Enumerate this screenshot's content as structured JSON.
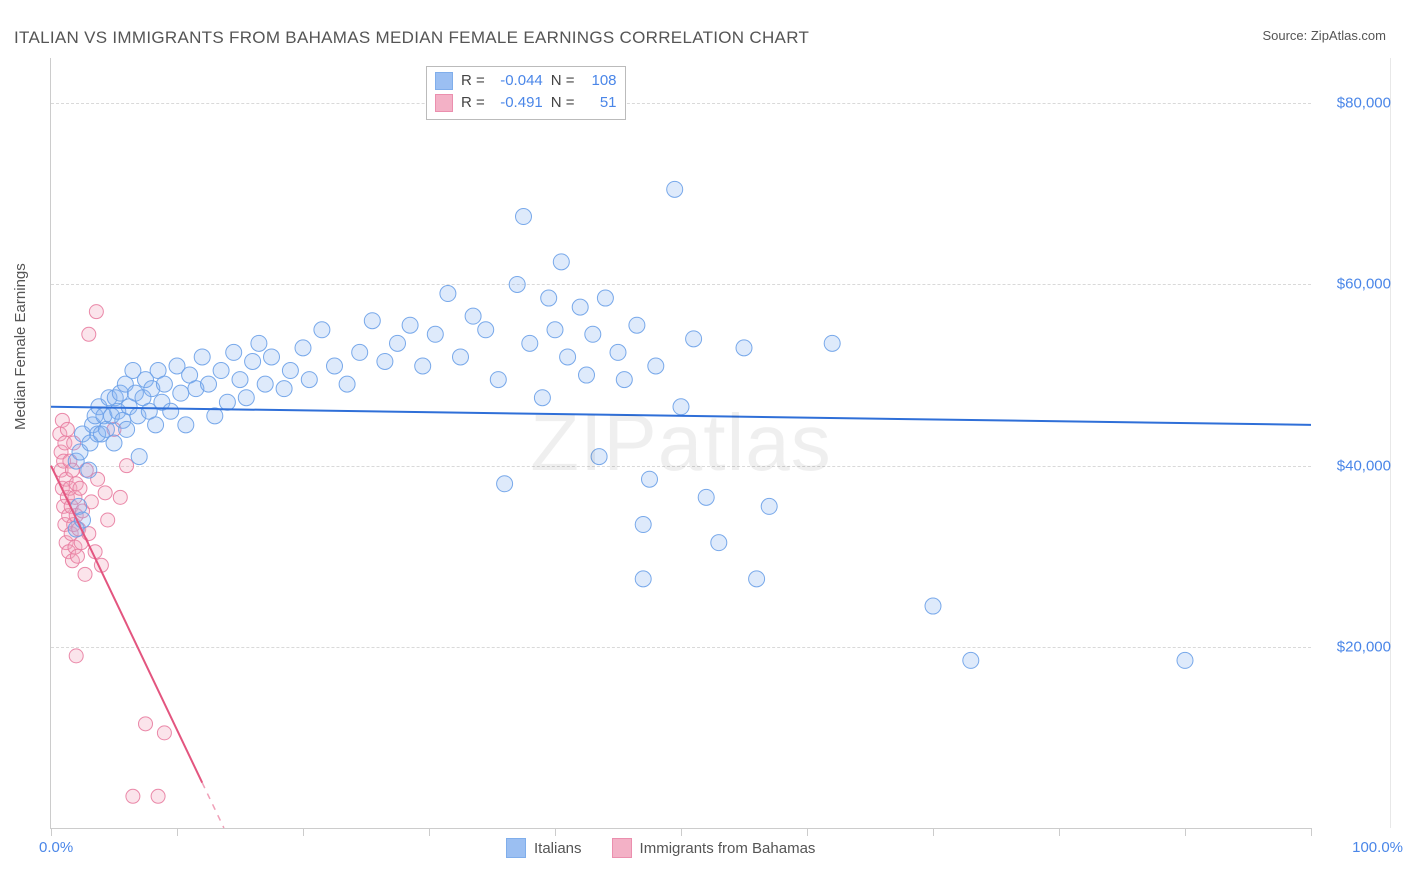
{
  "title": "ITALIAN VS IMMIGRANTS FROM BAHAMAS MEDIAN FEMALE EARNINGS CORRELATION CHART",
  "source_prefix": "Source: ",
  "source_name": "ZipAtlas.com",
  "watermark": "ZIPatlas",
  "ylabel": "Median Female Earnings",
  "chart": {
    "type": "scatter",
    "xlim": [
      0,
      100
    ],
    "ylim": [
      0,
      85000
    ],
    "x_ticks": [
      0,
      10,
      20,
      30,
      40,
      50,
      60,
      70,
      80,
      90,
      100
    ],
    "x_axis_label_left": "0.0%",
    "x_axis_label_right": "100.0%",
    "y_gridlines": [
      20000,
      40000,
      60000,
      80000
    ],
    "y_tick_labels": [
      "$20,000",
      "$40,000",
      "$60,000",
      "$80,000"
    ],
    "grid_color": "#d9d9d9",
    "axis_color": "#cccccc",
    "text_color": "#555555",
    "label_fontsize": 15,
    "title_fontsize": 17,
    "tick_label_color": "#4a86e8",
    "background_color": "#ffffff",
    "marker_radius_a": 8,
    "marker_radius_b": 7,
    "series": {
      "a": {
        "label": "Italians",
        "color": "#6aa0e8",
        "fill": "#8ab4f0",
        "R": "-0.044",
        "N": "108",
        "fit": {
          "x0": 0,
          "y0": 46500,
          "x1": 100,
          "y1": 44500
        },
        "points": [
          [
            2.0,
            33000
          ],
          [
            2.2,
            35500
          ],
          [
            2.5,
            34000
          ],
          [
            2.0,
            40500
          ],
          [
            2.3,
            41500
          ],
          [
            2.5,
            43500
          ],
          [
            3.0,
            39500
          ],
          [
            3.1,
            42500
          ],
          [
            3.3,
            44500
          ],
          [
            3.5,
            45500
          ],
          [
            3.7,
            43500
          ],
          [
            3.8,
            46500
          ],
          [
            4.0,
            43500
          ],
          [
            4.2,
            45500
          ],
          [
            4.4,
            44000
          ],
          [
            4.6,
            47500
          ],
          [
            4.8,
            45500
          ],
          [
            5.0,
            42500
          ],
          [
            5.1,
            47500
          ],
          [
            5.3,
            46000
          ],
          [
            5.5,
            48000
          ],
          [
            5.7,
            45000
          ],
          [
            5.9,
            49000
          ],
          [
            6.0,
            44000
          ],
          [
            6.2,
            46500
          ],
          [
            6.5,
            50500
          ],
          [
            6.7,
            48000
          ],
          [
            6.9,
            45500
          ],
          [
            7.0,
            41000
          ],
          [
            7.3,
            47500
          ],
          [
            7.5,
            49500
          ],
          [
            7.8,
            46000
          ],
          [
            8.0,
            48500
          ],
          [
            8.3,
            44500
          ],
          [
            8.5,
            50500
          ],
          [
            8.8,
            47000
          ],
          [
            9.0,
            49000
          ],
          [
            9.5,
            46000
          ],
          [
            10.0,
            51000
          ],
          [
            10.3,
            48000
          ],
          [
            10.7,
            44500
          ],
          [
            11.0,
            50000
          ],
          [
            11.5,
            48500
          ],
          [
            12.0,
            52000
          ],
          [
            12.5,
            49000
          ],
          [
            13.0,
            45500
          ],
          [
            13.5,
            50500
          ],
          [
            14.0,
            47000
          ],
          [
            14.5,
            52500
          ],
          [
            15.0,
            49500
          ],
          [
            15.5,
            47500
          ],
          [
            16.0,
            51500
          ],
          [
            16.5,
            53500
          ],
          [
            17.0,
            49000
          ],
          [
            17.5,
            52000
          ],
          [
            18.5,
            48500
          ],
          [
            19.0,
            50500
          ],
          [
            20.0,
            53000
          ],
          [
            20.5,
            49500
          ],
          [
            21.5,
            55000
          ],
          [
            22.5,
            51000
          ],
          [
            23.5,
            49000
          ],
          [
            24.5,
            52500
          ],
          [
            25.5,
            56000
          ],
          [
            26.5,
            51500
          ],
          [
            27.5,
            53500
          ],
          [
            28.5,
            55500
          ],
          [
            29.5,
            51000
          ],
          [
            30.5,
            54500
          ],
          [
            31.5,
            59000
          ],
          [
            32.5,
            52000
          ],
          [
            33.5,
            56500
          ],
          [
            34.5,
            55000
          ],
          [
            35.5,
            49500
          ],
          [
            36.0,
            38000
          ],
          [
            37.0,
            60000
          ],
          [
            37.5,
            67500
          ],
          [
            38.0,
            53500
          ],
          [
            39.0,
            47500
          ],
          [
            39.5,
            58500
          ],
          [
            40.0,
            55000
          ],
          [
            40.5,
            62500
          ],
          [
            41.0,
            52000
          ],
          [
            42.0,
            57500
          ],
          [
            42.5,
            50000
          ],
          [
            43.0,
            54500
          ],
          [
            43.5,
            41000
          ],
          [
            44.0,
            58500
          ],
          [
            45.0,
            52500
          ],
          [
            45.5,
            49500
          ],
          [
            46.5,
            55500
          ],
          [
            47.0,
            33500
          ],
          [
            47.5,
            38500
          ],
          [
            48.0,
            51000
          ],
          [
            49.5,
            70500
          ],
          [
            50.0,
            46500
          ],
          [
            51.0,
            54000
          ],
          [
            52.0,
            36500
          ],
          [
            53.0,
            31500
          ],
          [
            55.0,
            53000
          ],
          [
            56.0,
            27500
          ],
          [
            57.0,
            35500
          ],
          [
            47.0,
            27500
          ],
          [
            62.0,
            53500
          ],
          [
            70.0,
            24500
          ],
          [
            73.0,
            18500
          ],
          [
            90.0,
            18500
          ]
        ]
      },
      "b": {
        "label": "Immigrants from Bahamas",
        "color": "#e87ca0",
        "fill": "#f2a4bd",
        "R": "-0.491",
        "N": "51",
        "fit": {
          "x0": 0,
          "y0": 40000,
          "x1": 12,
          "y1": 5000
        },
        "fit_ext": {
          "x0": 12,
          "y0": 5000,
          "x1": 17,
          "y1": -9500
        },
        "points": [
          [
            0.7,
            43500
          ],
          [
            0.8,
            41500
          ],
          [
            0.8,
            39500
          ],
          [
            0.9,
            45000
          ],
          [
            0.9,
            37500
          ],
          [
            1.0,
            40500
          ],
          [
            1.0,
            35500
          ],
          [
            1.1,
            42500
          ],
          [
            1.1,
            33500
          ],
          [
            1.2,
            38500
          ],
          [
            1.2,
            31500
          ],
          [
            1.3,
            36500
          ],
          [
            1.3,
            44000
          ],
          [
            1.4,
            34500
          ],
          [
            1.4,
            30500
          ],
          [
            1.5,
            37500
          ],
          [
            1.5,
            40500
          ],
          [
            1.6,
            32500
          ],
          [
            1.6,
            35500
          ],
          [
            1.7,
            29500
          ],
          [
            1.7,
            39500
          ],
          [
            1.8,
            33500
          ],
          [
            1.8,
            42500
          ],
          [
            1.9,
            36500
          ],
          [
            1.9,
            31000
          ],
          [
            2.0,
            34500
          ],
          [
            2.0,
            38000
          ],
          [
            2.1,
            30000
          ],
          [
            2.2,
            33000
          ],
          [
            2.3,
            37500
          ],
          [
            2.4,
            31500
          ],
          [
            2.5,
            35000
          ],
          [
            2.7,
            28000
          ],
          [
            2.8,
            39500
          ],
          [
            3.0,
            32500
          ],
          [
            3.2,
            36000
          ],
          [
            3.5,
            30500
          ],
          [
            3.7,
            38500
          ],
          [
            4.0,
            29000
          ],
          [
            4.3,
            37000
          ],
          [
            4.5,
            34000
          ],
          [
            5.0,
            44000
          ],
          [
            5.5,
            36500
          ],
          [
            6.0,
            40000
          ],
          [
            3.6,
            57000
          ],
          [
            3.0,
            54500
          ],
          [
            2.0,
            19000
          ],
          [
            7.5,
            11500
          ],
          [
            9.0,
            10500
          ],
          [
            6.5,
            3500
          ],
          [
            8.5,
            3500
          ]
        ]
      }
    },
    "stats_labels": {
      "R": "R =",
      "N": "N ="
    }
  }
}
